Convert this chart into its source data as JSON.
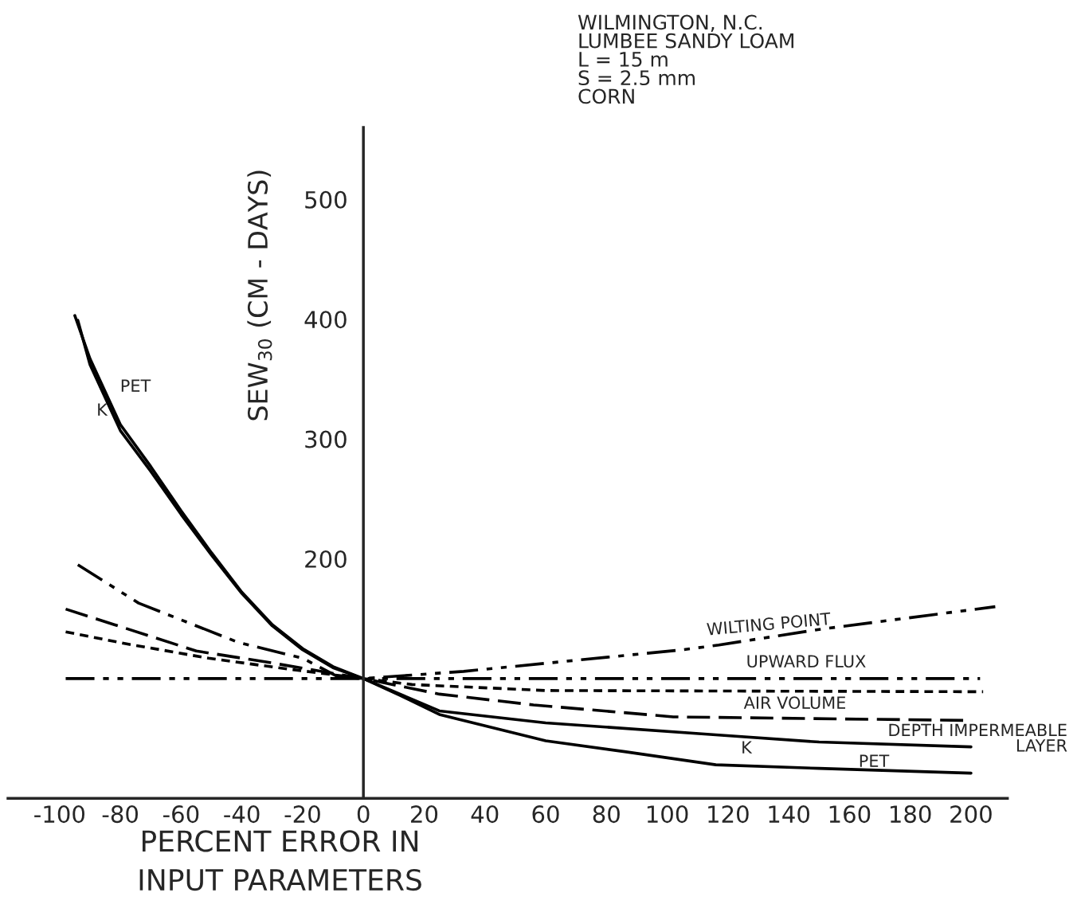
{
  "chart_data": {
    "type": "line",
    "xlabel": "PERCENT ERROR IN\nINPUT PARAMETERS",
    "ylabel": "SEW$_{30}$ (CM - DAYS)",
    "xlim": [
      -117,
      212
    ],
    "ylim": [
      0,
      560
    ],
    "xticks": [
      -100,
      -80,
      -60,
      -40,
      -20,
      0,
      20,
      40,
      60,
      80,
      100,
      120,
      140,
      160,
      180,
      200
    ],
    "yticks": [
      200,
      300,
      400,
      500
    ],
    "grid": false,
    "legend": false,
    "marker": "none",
    "series": [
      {
        "color": "#000000",
        "line_style": "solid",
        "x": [
          -95,
          -90,
          -80,
          -70,
          -60,
          -50,
          -40,
          -30,
          -20,
          -10,
          0,
          12,
          25,
          60,
          86,
          116,
          150,
          200
        ],
        "values": [
          403,
          367,
          312,
          277,
          240,
          205,
          172,
          145,
          125,
          110,
          100,
          86,
          70,
          48,
          39,
          28,
          25,
          21
        ]
      },
      {
        "color": "#000000",
        "line_style": "solid",
        "x": [
          -94,
          -90,
          -80,
          -70,
          -60,
          -50,
          -40,
          -30,
          -20,
          -10,
          0,
          25,
          60,
          116,
          150,
          200
        ],
        "values": [
          399,
          362,
          307,
          273,
          237,
          203,
          171,
          144,
          124,
          109,
          100,
          73,
          63,
          53,
          47,
          43
        ]
      },
      {
        "color": "#000000",
        "line_style": "dashdot",
        "x": [
          -94,
          -74,
          -41,
          -20,
          -8,
          0,
          33,
          105,
          117,
          150,
          208
        ],
        "values": [
          195,
          163,
          130,
          117,
          101,
          100,
          106,
          124,
          128,
          141,
          160
        ]
      },
      {
        "color": "#000000",
        "line_style": "dashdot",
        "x": [
          -98,
          0,
          203
        ],
        "values": [
          100,
          100,
          100
        ]
      },
      {
        "color": "#000000",
        "line_style": "dashed",
        "x": [
          -98,
          -82,
          -55,
          -30,
          0,
          25,
          56,
          102,
          200
        ],
        "values": [
          158,
          145,
          123,
          113,
          100,
          87,
          78,
          68,
          65
        ]
      },
      {
        "color": "#000000",
        "line_style": "dotted",
        "x": [
          -98,
          -78,
          -51,
          -25,
          0,
          16,
          60,
          204
        ],
        "values": [
          139,
          129,
          117,
          108,
          100,
          95,
          90,
          89
        ]
      }
    ],
    "annotations": [
      "WILMINGTON, N.C.\nLUMBEE SANDY LOAM\nL = 15 m\nS = 2.5 mm\nCORN",
      "PET",
      "K",
      "WILTING POINT",
      "UPWARD FLUX",
      "AIR VOLUME",
      "DEPTH IMPERMEABLE\nLAYER",
      "K",
      "PET"
    ]
  }
}
